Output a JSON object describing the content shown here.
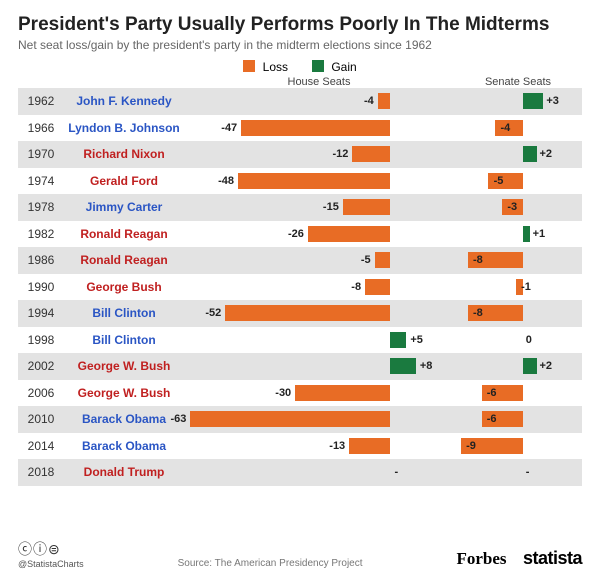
{
  "title": "President's Party Usually Performs Poorly In The Midterms",
  "subtitle": "Net seat loss/gain by the president's party in the midterm elections since 1962",
  "legend": {
    "loss": "Loss",
    "gain": "Gain"
  },
  "colors": {
    "loss": "#e86c25",
    "gain": "#1a7a3f",
    "dem": "#2a55c4",
    "rep": "#c02020",
    "row_odd": "#e3e3e3",
    "row_even": "#ffffff",
    "text": "#222222"
  },
  "columns": {
    "house": "House Seats",
    "senate": "Senate Seats"
  },
  "chart": {
    "house": {
      "min": -65,
      "max": 20,
      "zero_ratio": 0.7647
    },
    "senate": {
      "min": -10,
      "max": 6,
      "zero_ratio": 0.625
    }
  },
  "rows": [
    {
      "year": "1962",
      "name": "John F. Kennedy",
      "party": "dem",
      "house": -4,
      "senate": 3
    },
    {
      "year": "1966",
      "name": "Lyndon B. Johnson",
      "party": "dem",
      "house": -47,
      "senate": -4
    },
    {
      "year": "1970",
      "name": "Richard Nixon",
      "party": "rep",
      "house": -12,
      "senate": 2
    },
    {
      "year": "1974",
      "name": "Gerald Ford",
      "party": "rep",
      "house": -48,
      "senate": -5
    },
    {
      "year": "1978",
      "name": "Jimmy Carter",
      "party": "dem",
      "house": -15,
      "senate": -3
    },
    {
      "year": "1982",
      "name": "Ronald Reagan",
      "party": "rep",
      "house": -26,
      "senate": 1
    },
    {
      "year": "1986",
      "name": "Ronald Reagan",
      "party": "rep",
      "house": -5,
      "senate": -8
    },
    {
      "year": "1990",
      "name": "George Bush",
      "party": "rep",
      "house": -8,
      "senate": -1
    },
    {
      "year": "1994",
      "name": "Bill Clinton",
      "party": "dem",
      "house": -52,
      "senate": -8
    },
    {
      "year": "1998",
      "name": "Bill Clinton",
      "party": "dem",
      "house": 5,
      "senate": 0
    },
    {
      "year": "2002",
      "name": "George W. Bush",
      "party": "rep",
      "house": 8,
      "senate": 2
    },
    {
      "year": "2006",
      "name": "George W. Bush",
      "party": "rep",
      "house": -30,
      "senate": -6
    },
    {
      "year": "2010",
      "name": "Barack Obama",
      "party": "dem",
      "house": -63,
      "senate": -6
    },
    {
      "year": "2014",
      "name": "Barack Obama",
      "party": "dem",
      "house": -13,
      "senate": -9
    },
    {
      "year": "2018",
      "name": "Donald Trump",
      "party": "rep",
      "house": null,
      "senate": null
    }
  ],
  "footer": {
    "cc": "ⓒⓘ⊜",
    "handle": "@StatistaCharts",
    "source": "Source: The American Presidency Project",
    "brand1": "Forbes",
    "brand2": "statista"
  }
}
